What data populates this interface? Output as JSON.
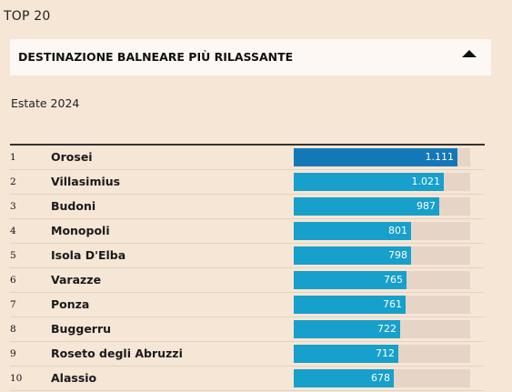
{
  "header": {
    "top_label": "TOP 20"
  },
  "dropdown": {
    "label": "DESTINAZIONE BALNEARE PIÙ RILASSANTE",
    "icon": "caret-up-icon"
  },
  "season": "Estate 2024",
  "colors": {
    "first_bar": "#1478b8",
    "bar": "#17a0cb",
    "track": "#e6d4c6",
    "background": "#f5e6d6"
  },
  "chart_data": {
    "type": "bar",
    "orientation": "horizontal",
    "max_value": 1200,
    "rows": [
      {
        "rank": "1",
        "name": "Orosei",
        "value": 1111,
        "label": "1.111"
      },
      {
        "rank": "2",
        "name": "Villasimius",
        "value": 1021,
        "label": "1.021"
      },
      {
        "rank": "3",
        "name": "Budoni",
        "value": 987,
        "label": "987"
      },
      {
        "rank": "4",
        "name": "Monopoli",
        "value": 801,
        "label": "801"
      },
      {
        "rank": "5",
        "name": "Isola D'Elba",
        "value": 798,
        "label": "798"
      },
      {
        "rank": "6",
        "name": "Varazze",
        "value": 765,
        "label": "765"
      },
      {
        "rank": "7",
        "name": "Ponza",
        "value": 761,
        "label": "761"
      },
      {
        "rank": "8",
        "name": "Buggerru",
        "value": 722,
        "label": "722"
      },
      {
        "rank": "9",
        "name": "Roseto degli Abruzzi",
        "value": 712,
        "label": "712"
      },
      {
        "rank": "10",
        "name": "Alassio",
        "value": 678,
        "label": "678"
      }
    ]
  }
}
